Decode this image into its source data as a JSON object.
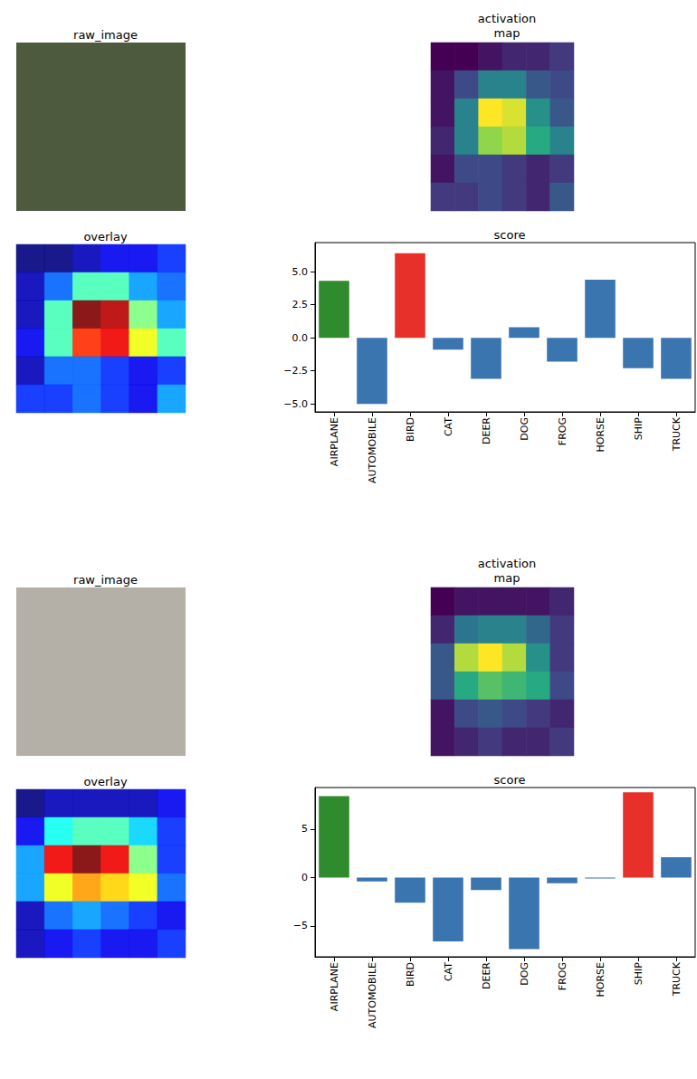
{
  "chart_data": [
    {
      "type": "image",
      "title": "raw_image",
      "color": "#4e5a3e"
    },
    {
      "type": "heatmap",
      "title": "activation\nmap",
      "tick_labels": false,
      "cells": [
        [
          0.05,
          0.05,
          0.1,
          0.15,
          0.15,
          0.2
        ],
        [
          0.1,
          0.25,
          0.45,
          0.45,
          0.3,
          0.25
        ],
        [
          0.1,
          0.45,
          0.95,
          0.9,
          0.5,
          0.3
        ],
        [
          0.15,
          0.45,
          0.8,
          0.85,
          0.6,
          0.45
        ],
        [
          0.1,
          0.25,
          0.25,
          0.2,
          0.15,
          0.2
        ],
        [
          0.2,
          0.2,
          0.25,
          0.2,
          0.15,
          0.3
        ]
      ]
    },
    {
      "type": "overlay",
      "title": "overlay",
      "tick_labels": false,
      "cells": [
        [
          0.05,
          0.05,
          0.1,
          0.15,
          0.15,
          0.2
        ],
        [
          0.1,
          0.25,
          0.45,
          0.45,
          0.3,
          0.25
        ],
        [
          0.1,
          0.45,
          0.95,
          0.9,
          0.5,
          0.3
        ],
        [
          0.15,
          0.45,
          0.8,
          0.85,
          0.6,
          0.45
        ],
        [
          0.1,
          0.25,
          0.25,
          0.2,
          0.15,
          0.2
        ],
        [
          0.2,
          0.2,
          0.25,
          0.2,
          0.15,
          0.3
        ]
      ]
    },
    {
      "type": "bar",
      "title": "score",
      "categories": [
        "AIRPLANE",
        "AUTOMOBILE",
        "BIRD",
        "CAT",
        "DEER",
        "DOG",
        "FROG",
        "HORSE",
        "SHIP",
        "TRUCK"
      ],
      "values": [
        4.3,
        -5.0,
        6.4,
        -0.9,
        -3.1,
        0.8,
        -1.8,
        4.4,
        -2.3,
        -3.1
      ],
      "colors": [
        "#2e8b2e",
        "#3b75af",
        "#e8302a",
        "#3b75af",
        "#3b75af",
        "#3b75af",
        "#3b75af",
        "#3b75af",
        "#3b75af",
        "#3b75af"
      ],
      "ylim": [
        -5.6,
        7.2
      ],
      "yticks": [
        {
          "value": -5,
          "label": "−5.0"
        },
        {
          "value": -2.5,
          "label": "−2.5"
        },
        {
          "value": 0,
          "label": "0.0"
        },
        {
          "value": 2.5,
          "label": "2.5"
        },
        {
          "value": 5,
          "label": "5.0"
        }
      ]
    },
    {
      "type": "image",
      "title": "raw_image",
      "color": "#b4b0a8"
    },
    {
      "type": "heatmap",
      "title": "activation\nmap",
      "tick_labels": false,
      "cells": [
        [
          0.05,
          0.1,
          0.1,
          0.1,
          0.1,
          0.15
        ],
        [
          0.15,
          0.4,
          0.45,
          0.45,
          0.35,
          0.2
        ],
        [
          0.3,
          0.85,
          0.95,
          0.85,
          0.5,
          0.2
        ],
        [
          0.3,
          0.6,
          0.7,
          0.65,
          0.6,
          0.25
        ],
        [
          0.1,
          0.25,
          0.3,
          0.25,
          0.2,
          0.15
        ],
        [
          0.1,
          0.15,
          0.2,
          0.15,
          0.15,
          0.2
        ]
      ]
    },
    {
      "type": "overlay",
      "title": "overlay",
      "tick_labels": false,
      "cells": [
        [
          0.05,
          0.1,
          0.1,
          0.1,
          0.1,
          0.15
        ],
        [
          0.15,
          0.4,
          0.45,
          0.45,
          0.35,
          0.2
        ],
        [
          0.3,
          0.85,
          0.95,
          0.85,
          0.5,
          0.2
        ],
        [
          0.3,
          0.6,
          0.7,
          0.65,
          0.6,
          0.25
        ],
        [
          0.1,
          0.25,
          0.3,
          0.25,
          0.2,
          0.15
        ],
        [
          0.1,
          0.15,
          0.2,
          0.15,
          0.15,
          0.2
        ]
      ]
    },
    {
      "type": "bar",
      "title": "score",
      "categories": [
        "AIRPLANE",
        "AUTOMOBILE",
        "BIRD",
        "CAT",
        "DEER",
        "DOG",
        "FROG",
        "HORSE",
        "SHIP",
        "TRUCK"
      ],
      "values": [
        8.4,
        -0.4,
        -2.6,
        -6.6,
        -1.3,
        -7.4,
        -0.6,
        -0.1,
        8.8,
        2.1
      ],
      "colors": [
        "#2e8b2e",
        "#3b75af",
        "#3b75af",
        "#3b75af",
        "#3b75af",
        "#3b75af",
        "#3b75af",
        "#3b75af",
        "#e8302a",
        "#3b75af"
      ],
      "ylim": [
        -8.2,
        9.3
      ],
      "yticks": [
        {
          "value": -5,
          "label": "−5"
        },
        0,
        5
      ]
    }
  ]
}
